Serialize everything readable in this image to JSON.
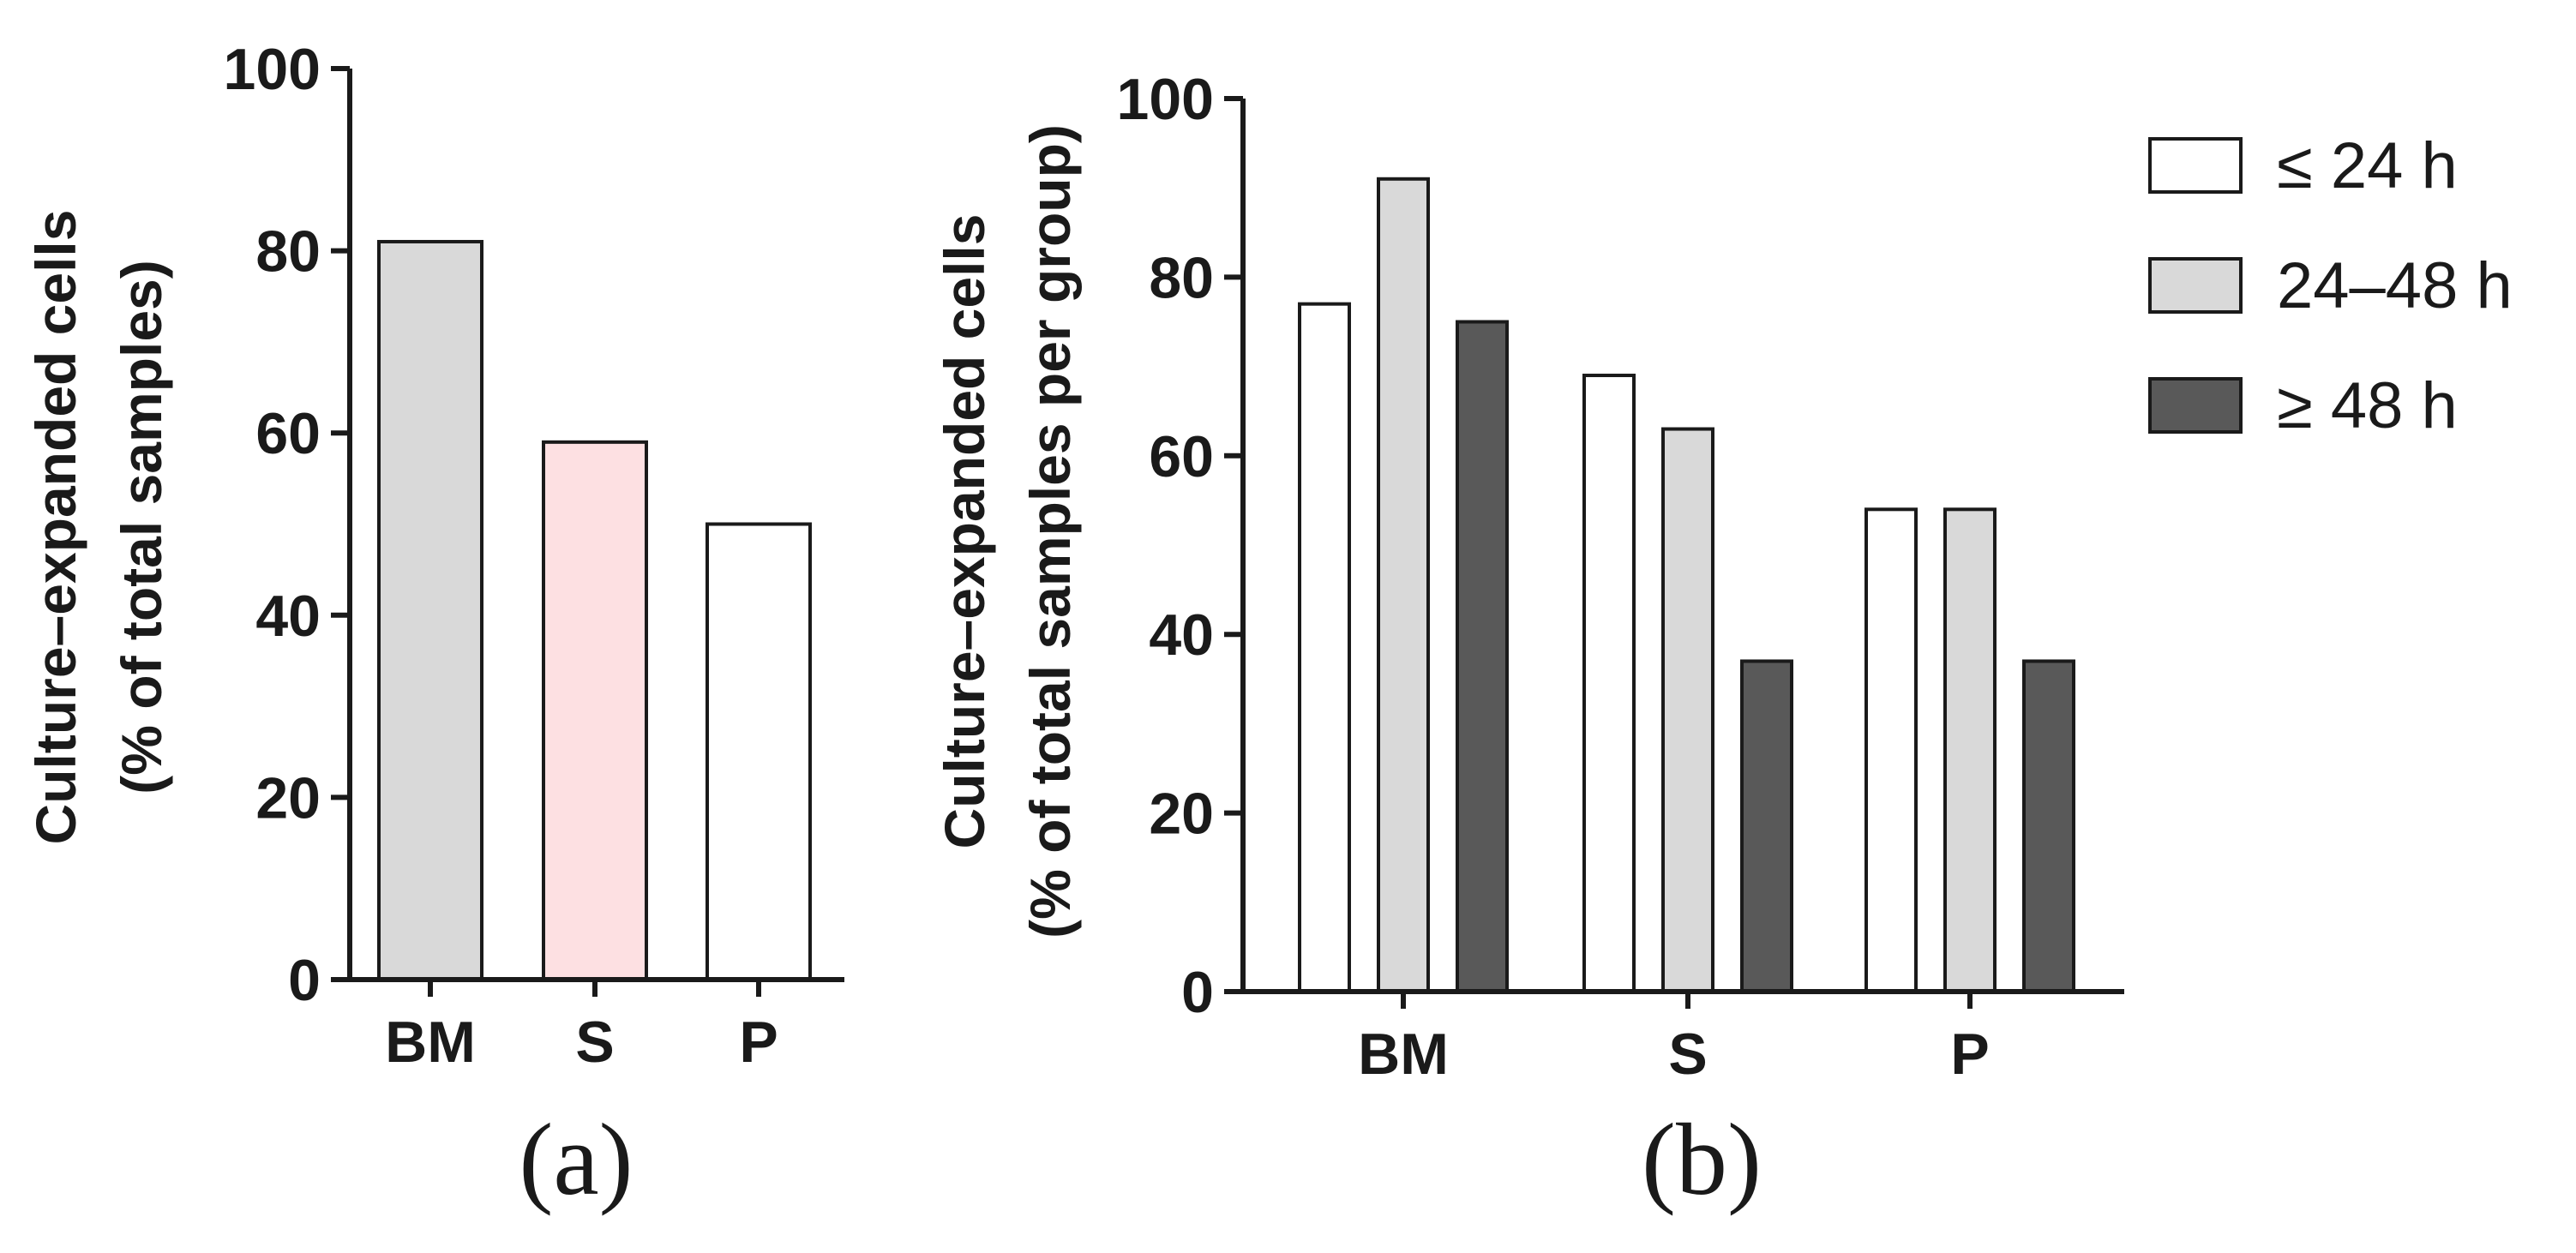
{
  "chart_data": [
    {
      "type": "bar",
      "panel_label": "(a)",
      "categories": [
        "BM",
        "S",
        "P"
      ],
      "values": [
        81,
        59,
        50
      ],
      "bar_colors": [
        "#d9d9d9",
        "#fde0e2",
        "#ffffff"
      ],
      "ylabel_line1": "Culture–expanded cells",
      "ylabel_line2": "(% of total samples)",
      "ylim": [
        0,
        100
      ],
      "yticks": [
        0,
        20,
        40,
        60,
        80,
        100
      ],
      "ytick_labels": [
        "0",
        "20",
        "40",
        "60",
        "80",
        "100"
      ],
      "grid": false
    },
    {
      "type": "bar",
      "panel_label": "(b)",
      "categories": [
        "BM",
        "S",
        "P"
      ],
      "series": [
        {
          "name": "≤ 24 h",
          "values": [
            77,
            69,
            54
          ],
          "color": "#ffffff"
        },
        {
          "name": "24–48 h",
          "values": [
            91,
            63,
            54
          ],
          "color": "#d9d9d9"
        },
        {
          "name": "≥ 48 h",
          "values": [
            75,
            37,
            37
          ],
          "color": "#595959"
        }
      ],
      "ylabel_line1": "Culture–expanded cells",
      "ylabel_line2": "(% of total samples per group)",
      "ylim": [
        0,
        100
      ],
      "yticks": [
        0,
        20,
        40,
        60,
        80,
        100
      ],
      "ytick_labels": [
        "0",
        "20",
        "40",
        "60",
        "80",
        "100"
      ],
      "legend_position": "top-right",
      "grid": false
    }
  ],
  "colors": {
    "axis": "#1a1a1a",
    "bar_edge": "#1a1a1a"
  }
}
